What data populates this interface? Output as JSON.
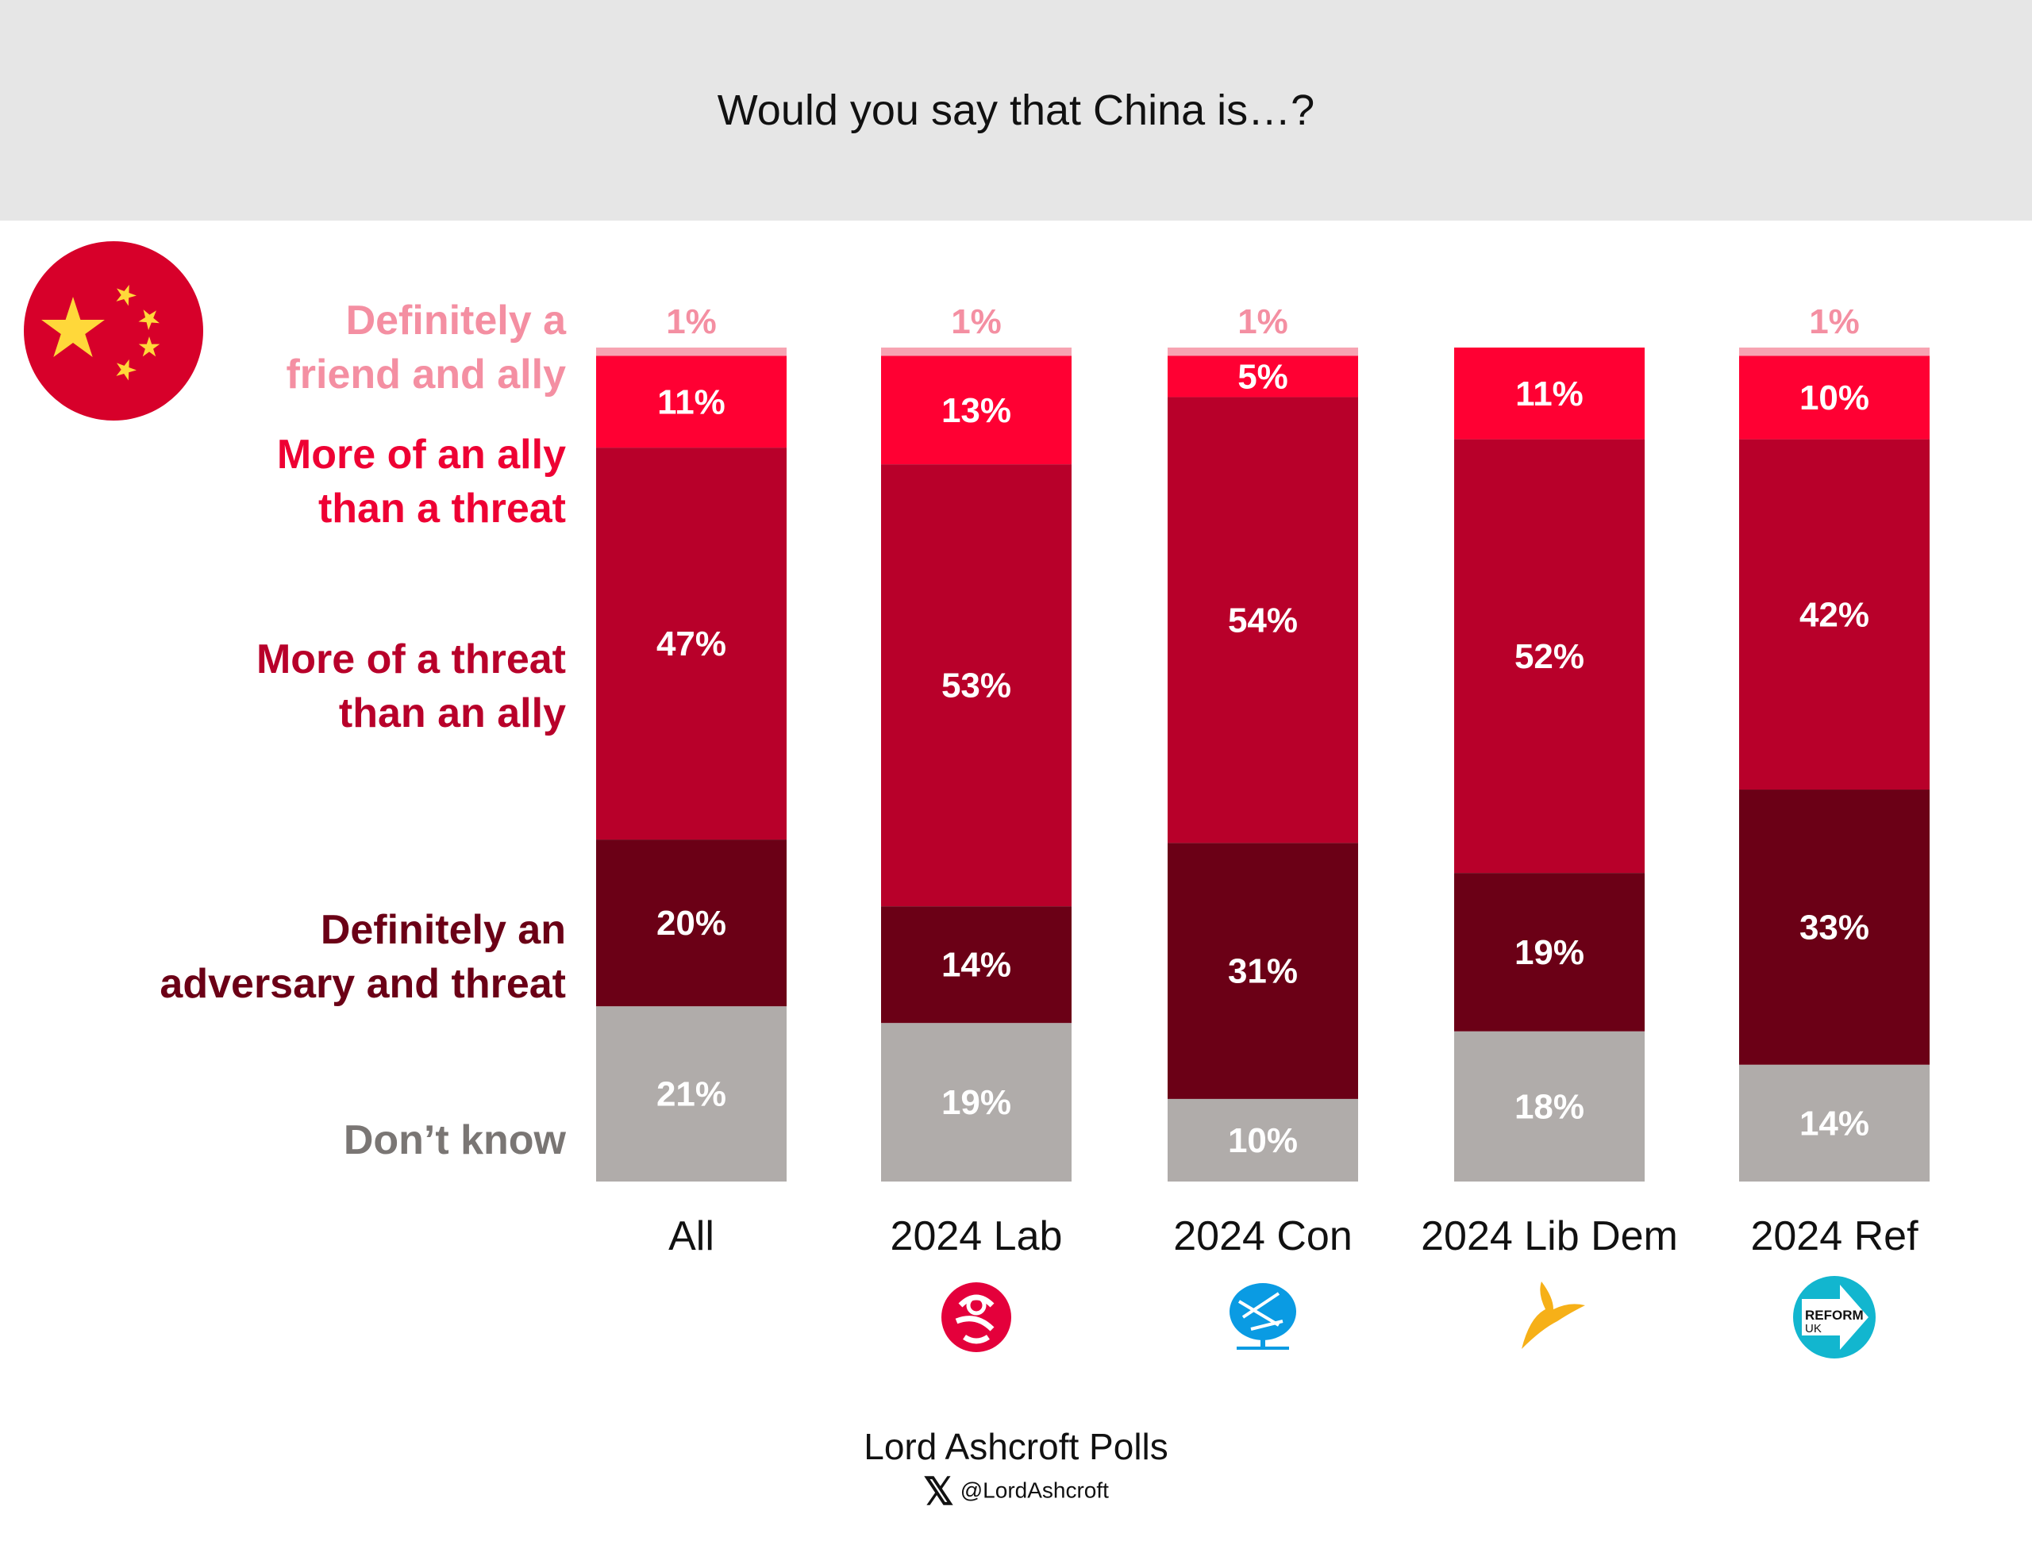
{
  "title": "Would you say that China is…?",
  "legend": [
    {
      "lines": [
        "Definitely a",
        "friend and ally"
      ],
      "color": "#f48fa2"
    },
    {
      "lines": [
        "More of an ally",
        "than a threat"
      ],
      "color": "#ee0033"
    },
    {
      "lines": [
        "More of a threat",
        "than an ally"
      ],
      "color": "#b8002a"
    },
    {
      "lines": [
        "Definitely an",
        "adversary and threat"
      ],
      "color": "#6b0016"
    },
    {
      "lines": [
        "Don’t know"
      ],
      "color": "#7a7674"
    }
  ],
  "chart_data": {
    "type": "bar",
    "stacked": true,
    "title": "Would you say that China is…?",
    "categories": [
      "All",
      "2024 Lab",
      "2024 Con",
      "2024 Lib Dem",
      "2024 Ref"
    ],
    "series": [
      {
        "name": "Definitely a friend and ally",
        "color": "#f7a3b2",
        "values": [
          1,
          1,
          1,
          0,
          1
        ]
      },
      {
        "name": "More of an ally than a threat",
        "color": "#ff0033",
        "values": [
          11,
          13,
          5,
          11,
          10
        ]
      },
      {
        "name": "More of a threat than an ally",
        "color": "#b8002a",
        "values": [
          47,
          53,
          54,
          52,
          42
        ]
      },
      {
        "name": "Definitely an adversary and threat",
        "color": "#6b0016",
        "values": [
          20,
          14,
          31,
          19,
          33
        ]
      },
      {
        "name": "Don’t know",
        "color": "#b0acaa",
        "values": [
          21,
          19,
          10,
          18,
          14
        ]
      }
    ],
    "unit": "%",
    "ylim": [
      0,
      100
    ],
    "grid": false
  },
  "party_logos": [
    "",
    "labour-rose-icon",
    "conservative-tree-icon",
    "libdem-bird-icon",
    "reform-uk-arrow-icon"
  ],
  "reform_logo_text": [
    "REFORM",
    "UK"
  ],
  "footer": {
    "brand": "Lord Ashcroft Polls",
    "x_glyph": "𝕏",
    "handle": "@LordAshcroft"
  }
}
